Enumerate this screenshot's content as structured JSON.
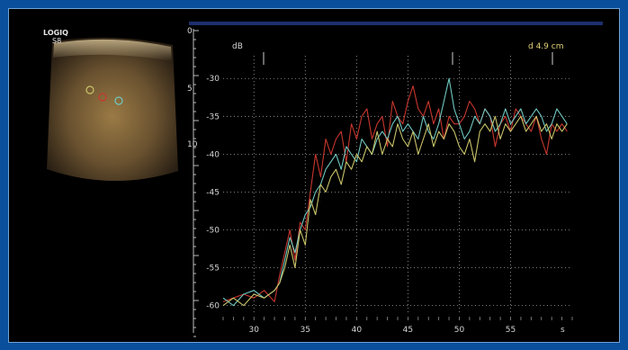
{
  "device": {
    "brand": "LOGIQ",
    "model": "S8"
  },
  "depth_marks": [
    "0",
    "5",
    "10"
  ],
  "measurement": {
    "label": "d 4.9 cm"
  },
  "colors": {
    "background": "#000000",
    "frame_border": "#0a4f9c",
    "grid": "#d0d0d0",
    "series_red": "#c8372e",
    "series_cyan": "#6fc8c0",
    "series_yellow": "#c9c46a"
  },
  "chart_data": {
    "type": "line",
    "ylabel": "dB",
    "xunit": "s",
    "xlim": [
      27,
      61
    ],
    "ylim": [
      -61,
      -27
    ],
    "xticks": [
      30,
      35,
      40,
      45,
      50,
      55
    ],
    "yticks": [
      -30,
      -35,
      -40,
      -45,
      -50,
      -55,
      -60
    ],
    "grid": true,
    "series": [
      {
        "color": "#c8372e",
        "x": [
          27,
          28,
          29,
          30,
          31,
          32,
          32.5,
          33,
          33.5,
          34,
          34.5,
          35,
          35.5,
          36,
          36.5,
          37,
          37.5,
          38,
          38.5,
          39,
          39.5,
          40,
          40.5,
          41,
          41.5,
          42,
          42.5,
          43,
          43.5,
          44,
          44.5,
          45,
          45.5,
          46,
          46.5,
          47,
          47.5,
          48,
          48.5,
          49,
          49.5,
          50,
          50.5,
          51,
          51.5,
          52,
          52.5,
          53,
          53.5,
          54,
          54.5,
          55,
          55.5,
          56,
          56.5,
          57,
          57.5,
          58,
          58.5,
          59,
          59.5,
          60,
          60.5
        ],
        "y": [
          -59.5,
          -59,
          -58.5,
          -59,
          -58,
          -59.5,
          -56,
          -53,
          -50,
          -54,
          -49,
          -50,
          -45,
          -40,
          -43,
          -38,
          -40,
          -38,
          -37,
          -41,
          -36,
          -38,
          -35,
          -34,
          -38,
          -36,
          -35,
          -39,
          -33,
          -35,
          -36,
          -33,
          -31,
          -34,
          -35,
          -33,
          -36,
          -34,
          -38,
          -35,
          -36,
          -36,
          -35,
          -33,
          -34,
          -36,
          -34,
          -35,
          -39,
          -36,
          -35,
          -37,
          -34,
          -35,
          -36,
          -37,
          -35,
          -38,
          -40,
          -36,
          -37,
          -36,
          -37
        ]
      },
      {
        "color": "#6fc8c0",
        "x": [
          27,
          28,
          29,
          30,
          31,
          32,
          32.5,
          33,
          33.5,
          34,
          34.5,
          35,
          35.5,
          36,
          36.5,
          37,
          37.5,
          38,
          38.5,
          39,
          39.5,
          40,
          40.5,
          41,
          41.5,
          42,
          42.5,
          43,
          43.5,
          44,
          44.5,
          45,
          45.5,
          46,
          46.5,
          47,
          47.5,
          48,
          48.5,
          49,
          49.5,
          50,
          50.5,
          51,
          51.5,
          52,
          52.5,
          53,
          53.5,
          54,
          54.5,
          55,
          55.5,
          56,
          56.5,
          57,
          57.5,
          58,
          58.5,
          59,
          59.5,
          60,
          60.5
        ],
        "y": [
          -59,
          -60,
          -58.5,
          -58,
          -59,
          -58,
          -57,
          -54,
          -51,
          -53,
          -50,
          -48,
          -47,
          -45,
          -44,
          -42,
          -41,
          -40,
          -42,
          -39,
          -40,
          -41,
          -38,
          -39,
          -40,
          -38,
          -37,
          -38,
          -36,
          -35,
          -37,
          -36,
          -37,
          -38,
          -35,
          -37,
          -38,
          -36,
          -33,
          -30,
          -34,
          -36,
          -38,
          -37,
          -35,
          -36,
          -34,
          -35,
          -37,
          -36,
          -34,
          -36,
          -35,
          -34,
          -36,
          -35,
          -34,
          -35,
          -37,
          -36,
          -34,
          -35,
          -36
        ]
      },
      {
        "color": "#c9c46a",
        "x": [
          27,
          28,
          29,
          30,
          31,
          32,
          32.5,
          33,
          33.5,
          34,
          34.5,
          35,
          35.5,
          36,
          36.5,
          37,
          37.5,
          38,
          38.5,
          39,
          39.5,
          40,
          40.5,
          41,
          41.5,
          42,
          42.5,
          43,
          43.5,
          44,
          44.5,
          45,
          45.5,
          46,
          46.5,
          47,
          47.5,
          48,
          48.5,
          49,
          49.5,
          50,
          50.5,
          51,
          51.5,
          52,
          52.5,
          53,
          53.5,
          54,
          54.5,
          55,
          55.5,
          56,
          56.5,
          57,
          57.5,
          58,
          58.5,
          59,
          59.5,
          60,
          60.5
        ],
        "y": [
          -60,
          -59,
          -60,
          -58.5,
          -59,
          -58,
          -57,
          -55,
          -52,
          -55,
          -50,
          -52,
          -46,
          -48,
          -44,
          -45,
          -43,
          -42,
          -44,
          -41,
          -42,
          -40,
          -41,
          -39,
          -40,
          -37,
          -40,
          -38,
          -39,
          -36,
          -38,
          -39,
          -37,
          -40,
          -38,
          -36,
          -39,
          -37,
          -38,
          -36,
          -37,
          -39,
          -40,
          -38,
          -41,
          -37,
          -36,
          -37,
          -35,
          -38,
          -36,
          -37,
          -36,
          -35,
          -37,
          -36,
          -35,
          -37,
          -36,
          -38,
          -36,
          -37,
          -36
        ]
      }
    ]
  }
}
